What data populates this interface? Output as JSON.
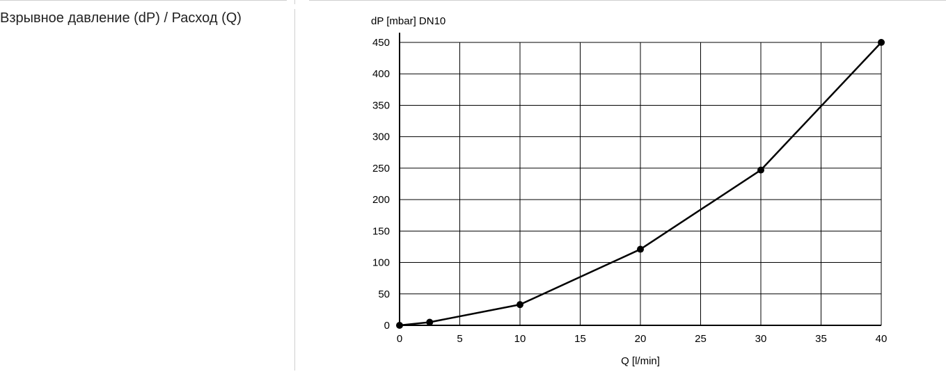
{
  "row": {
    "label": "Взрывное давление (dP) / Расход (Q)"
  },
  "chart_data": {
    "type": "line",
    "title": "dP [mbar] DN10",
    "xlabel": "Q [l/min]",
    "ylabel": "dP [mbar] DN10",
    "xlim": [
      0,
      40
    ],
    "ylim": [
      0,
      450
    ],
    "x_ticks": [
      0,
      5,
      10,
      15,
      20,
      25,
      30,
      35,
      40
    ],
    "y_ticks": [
      0,
      50,
      100,
      150,
      200,
      250,
      300,
      350,
      400,
      450
    ],
    "grid": true,
    "series": [
      {
        "x": [
          0,
          2.5,
          10,
          20,
          30,
          40
        ],
        "y": [
          0,
          5,
          33,
          121,
          247,
          450
        ]
      }
    ],
    "colors": {
      "line": "#000000",
      "grid": "#000000",
      "marker": "#000000"
    }
  }
}
